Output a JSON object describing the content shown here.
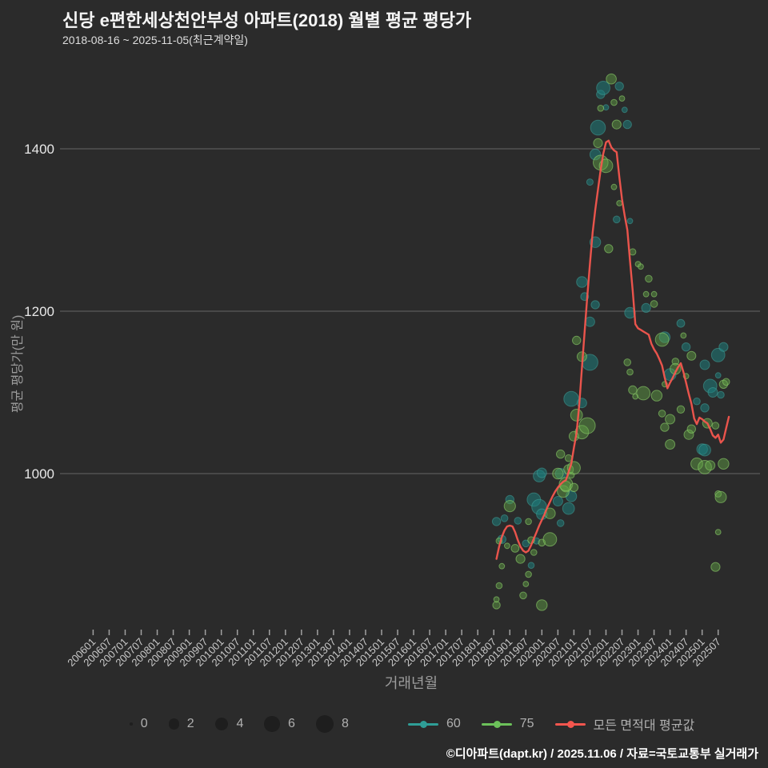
{
  "title": "신당 e편한세상천안부성 아파트(2018) 월별 평균 평당가",
  "subtitle": "2018-08-16 ~ 2025-11-05(최근계약일)",
  "footer": "©디아파트(dapt.kr) / 2025.11.06 / 자료=국토교통부 실거래가",
  "colors": {
    "background": "#2b2b2b",
    "grid": "#8a8a8a",
    "tick_label": "#c9c9c9",
    "y_tick_label": "#e8e8e8",
    "axis_title": "#9c9c9c",
    "legend_text": "#b0b0b0",
    "size_dot": "#1e1e1e",
    "series_60": "#2f9e97",
    "series_75": "#6cc15a",
    "avg_line": "#f4564e",
    "bubble_60_fill": "#1e7d7b",
    "bubble_60_stroke": "#43a79f",
    "bubble_75_fill": "#63a746",
    "bubble_75_stroke": "#8ed06b"
  },
  "legend": {
    "sizes": [
      "0",
      "2",
      "4",
      "6",
      "8"
    ],
    "series": [
      {
        "key": "60",
        "label": "60"
      },
      {
        "key": "75",
        "label": "75"
      },
      {
        "key": "avg",
        "label": "모든 면적대 평균값"
      }
    ]
  },
  "chart_data": {
    "type": "scatter",
    "title": "신당 e편한세상천안부성 아파트(2018) 월별 평균 평당가",
    "xlabel": "거래년월",
    "ylabel": "평균 평당가(만 원)",
    "ylim": [
      800,
      1510
    ],
    "y_ticks": [
      1400,
      1200,
      1000
    ],
    "x_ticks": [
      "200601",
      "200607",
      "200701",
      "200707",
      "200801",
      "200807",
      "200901",
      "200907",
      "201001",
      "201007",
      "201101",
      "201107",
      "201201",
      "201207",
      "201301",
      "201307",
      "201401",
      "201407",
      "201501",
      "201507",
      "201601",
      "201607",
      "201701",
      "201707",
      "201801",
      "201807",
      "201901",
      "201907",
      "202001",
      "202007",
      "202101",
      "202107",
      "202201",
      "202207",
      "202301",
      "202307",
      "202401",
      "202407",
      "202501",
      "202507"
    ],
    "bubble_series": [
      {
        "name": "60",
        "points": [
          [
            "201808",
            941,
            1
          ],
          [
            "201811",
            945,
            0.5
          ],
          [
            "201810",
            919,
            1
          ],
          [
            "201901",
            968,
            1
          ],
          [
            "201904",
            942,
            0.5
          ],
          [
            "201907",
            914,
            0.5
          ],
          [
            "201909",
            887,
            0.3
          ],
          [
            "201911",
            917,
            0.4
          ],
          [
            "201910",
            968,
            4
          ],
          [
            "201912",
            959,
            5.2
          ],
          [
            "201912",
            997,
            2.8
          ],
          [
            "202001",
            950,
            2.2
          ],
          [
            "202001",
            1001,
            1.6
          ],
          [
            "202007",
            966,
            1.6
          ],
          [
            "202008",
            939,
            0.5
          ],
          [
            "202008",
            1000,
            2
          ],
          [
            "202011",
            957,
            2.8
          ],
          [
            "202012",
            972,
            2.2
          ],
          [
            "202012",
            1092,
            5.2
          ],
          [
            "202104",
            1236,
            2.2
          ],
          [
            "202104",
            1087,
            1.6
          ],
          [
            "202105",
            1218,
            0.8
          ],
          [
            "202107",
            1187,
            1.6
          ],
          [
            "202107",
            1137,
            6.3
          ],
          [
            "202107",
            1359,
            0.4
          ],
          [
            "202109",
            1208,
            1
          ],
          [
            "202109",
            1285,
            2.2
          ],
          [
            "202109",
            1393,
            2.2
          ],
          [
            "202110",
            1426,
            5.2
          ],
          [
            "202111",
            1467,
            1
          ],
          [
            "202112",
            1475,
            4
          ],
          [
            "202201",
            1451,
            0.2
          ],
          [
            "202205",
            1313,
            0.5
          ],
          [
            "202206",
            1477,
            1
          ],
          [
            "202208",
            1448,
            0.2
          ],
          [
            "202209",
            1430,
            1
          ],
          [
            "202210",
            1311,
            0.2
          ],
          [
            "202210",
            1198,
            2.2
          ],
          [
            "202304",
            1204,
            1.3
          ],
          [
            "202311",
            1168,
            2.2
          ],
          [
            "202401",
            1122,
            2.8
          ],
          [
            "202405",
            1185,
            0.8
          ],
          [
            "202407",
            1156,
            1
          ],
          [
            "202411",
            1089,
            0.5
          ],
          [
            "202501",
            1030,
            2.2
          ],
          [
            "202502",
            1134,
            1.6
          ],
          [
            "202502",
            1081,
            1
          ],
          [
            "202502",
            1029,
            2.8
          ],
          [
            "202504",
            1108,
            4
          ],
          [
            "202505",
            1100,
            1.6
          ],
          [
            "202507",
            1146,
            4
          ],
          [
            "202507",
            1121,
            0.2
          ],
          [
            "202508",
            1097,
            0.5
          ],
          [
            "202509",
            1156,
            1.3
          ]
        ]
      },
      {
        "name": "75",
        "points": [
          [
            "201808",
            838,
            0.7
          ],
          [
            "201808",
            845,
            0.2
          ],
          [
            "201809",
            917,
            0.3
          ],
          [
            "201809",
            862,
            0.3
          ],
          [
            "201810",
            886,
            0.2
          ],
          [
            "201812",
            911,
            0.2
          ],
          [
            "201901",
            960,
            2.5
          ],
          [
            "201903",
            908,
            0.8
          ],
          [
            "201905",
            895,
            1.3
          ],
          [
            "201906",
            850,
            0.5
          ],
          [
            "201907",
            864,
            0.2
          ],
          [
            "201908",
            941,
            0.3
          ],
          [
            "201908",
            876,
            0.3
          ],
          [
            "201909",
            918,
            0.5
          ],
          [
            "201910",
            903,
            0.3
          ],
          [
            "202001",
            915,
            0.5
          ],
          [
            "202001",
            838,
            2.2
          ],
          [
            "202004",
            951,
            2.2
          ],
          [
            "202004",
            919,
            4
          ],
          [
            "202007",
            1000,
            2.2
          ],
          [
            "202008",
            1024,
            1
          ],
          [
            "202009",
            978,
            2.8
          ],
          [
            "202010",
            984,
            2.2
          ],
          [
            "202010",
            987,
            4
          ],
          [
            "202011",
            1019,
            0.5
          ],
          [
            "202011",
            1005,
            1.6
          ],
          [
            "202012",
            998,
            0.3
          ],
          [
            "202101",
            983,
            1
          ],
          [
            "202101",
            1046,
            1.6
          ],
          [
            "202101",
            1007,
            3.5
          ],
          [
            "202102",
            1164,
            1
          ],
          [
            "202102",
            1072,
            2.8
          ],
          [
            "202104",
            1144,
            1.6
          ],
          [
            "202104",
            1051,
            4
          ],
          [
            "202106",
            1059,
            6.3
          ],
          [
            "202110",
            1407,
            1.3
          ],
          [
            "202111",
            1450,
            0.3
          ],
          [
            "202111",
            1383,
            5.2
          ],
          [
            "202201",
            1379,
            4
          ],
          [
            "202202",
            1277,
            1
          ],
          [
            "202203",
            1486,
            1.8
          ],
          [
            "202204",
            1457,
            0.3
          ],
          [
            "202204",
            1353,
            0.2
          ],
          [
            "202205",
            1430,
            1.3
          ],
          [
            "202206",
            1333,
            0.2
          ],
          [
            "202207",
            1462,
            0.2
          ],
          [
            "202209",
            1137,
            0.5
          ],
          [
            "202210",
            1125,
            0.3
          ],
          [
            "202211",
            1273,
            0.4
          ],
          [
            "202211",
            1103,
            1
          ],
          [
            "202212",
            1095,
            0.2
          ],
          [
            "202301",
            1258,
            0.2
          ],
          [
            "202302",
            1255,
            0.2
          ],
          [
            "202303",
            1099,
            4
          ],
          [
            "202304",
            1221,
            0.2
          ],
          [
            "202305",
            1240,
            0.5
          ],
          [
            "202307",
            1221,
            0.2
          ],
          [
            "202307",
            1209,
            0.5
          ],
          [
            "202308",
            1096,
            2.2
          ],
          [
            "202310",
            1165,
            4
          ],
          [
            "202310",
            1074,
            0.5
          ],
          [
            "202311",
            1110,
            0.2
          ],
          [
            "202311",
            1057,
            1
          ],
          [
            "202401",
            1067,
            1.6
          ],
          [
            "202401",
            1036,
            1.6
          ],
          [
            "202403",
            1138,
            0.5
          ],
          [
            "202403",
            1129,
            2.2
          ],
          [
            "202405",
            1079,
            0.7
          ],
          [
            "202406",
            1170,
            0.2
          ],
          [
            "202407",
            1120,
            0.2
          ],
          [
            "202408",
            1048,
            1.6
          ],
          [
            "202409",
            1145,
            1.2
          ],
          [
            "202409",
            1055,
            1
          ],
          [
            "202411",
            1012,
            2.8
          ],
          [
            "202502",
            1008,
            4
          ],
          [
            "202503",
            1062,
            1.6
          ],
          [
            "202504",
            1010,
            1.6
          ],
          [
            "202506",
            1059,
            0.5
          ],
          [
            "202506",
            885,
            1.3
          ],
          [
            "202507",
            975,
            0.4
          ],
          [
            "202507",
            928,
            0.2
          ],
          [
            "202508",
            971,
            2.4
          ],
          [
            "202509",
            1110,
            1
          ],
          [
            "202509",
            1012,
            2.2
          ],
          [
            "202510",
            1113,
            0.5
          ]
        ]
      }
    ],
    "avg_line": {
      "name": "모든 면적대 평균값",
      "points": [
        [
          "201808",
          895
        ],
        [
          "201809",
          910
        ],
        [
          "201810",
          922
        ],
        [
          "201811",
          930
        ],
        [
          "201812",
          935
        ],
        [
          "201901",
          936
        ],
        [
          "201902",
          935
        ],
        [
          "201903",
          928
        ],
        [
          "201904",
          918
        ],
        [
          "201905",
          910
        ],
        [
          "201906",
          905
        ],
        [
          "201907",
          903
        ],
        [
          "201908",
          905
        ],
        [
          "201909",
          912
        ],
        [
          "201910",
          920
        ],
        [
          "201911",
          928
        ],
        [
          "201912",
          936
        ],
        [
          "202001",
          943
        ],
        [
          "202002",
          950
        ],
        [
          "202003",
          958
        ],
        [
          "202004",
          965
        ],
        [
          "202005",
          972
        ],
        [
          "202006",
          978
        ],
        [
          "202007",
          983
        ],
        [
          "202008",
          987
        ],
        [
          "202009",
          990
        ],
        [
          "202010",
          992
        ],
        [
          "202011",
          1002
        ],
        [
          "202012",
          1012
        ],
        [
          "202101",
          1032
        ],
        [
          "202102",
          1050
        ],
        [
          "202103",
          1085
        ],
        [
          "202104",
          1130
        ],
        [
          "202105",
          1175
        ],
        [
          "202106",
          1218
        ],
        [
          "202107",
          1258
        ],
        [
          "202108",
          1297
        ],
        [
          "202109",
          1325
        ],
        [
          "202110",
          1350
        ],
        [
          "202111",
          1374
        ],
        [
          "202112",
          1394
        ],
        [
          "202201",
          1408
        ],
        [
          "202202",
          1410
        ],
        [
          "202203",
          1402
        ],
        [
          "202204",
          1398
        ],
        [
          "202205",
          1396
        ],
        [
          "202206",
          1365
        ],
        [
          "202207",
          1338
        ],
        [
          "202208",
          1318
        ],
        [
          "202209",
          1300
        ],
        [
          "202210",
          1262
        ],
        [
          "202211",
          1225
        ],
        [
          "202212",
          1184
        ],
        [
          "202301",
          1179
        ],
        [
          "202302",
          1177
        ],
        [
          "202303",
          1175
        ],
        [
          "202304",
          1173
        ],
        [
          "202305",
          1171
        ],
        [
          "202306",
          1160
        ],
        [
          "202307",
          1153
        ],
        [
          "202308",
          1148
        ],
        [
          "202309",
          1141
        ],
        [
          "202310",
          1133
        ],
        [
          "202311",
          1118
        ],
        [
          "202312",
          1105
        ],
        [
          "202401",
          1112
        ],
        [
          "202402",
          1118
        ],
        [
          "202403",
          1125
        ],
        [
          "202404",
          1131
        ],
        [
          "202405",
          1136
        ],
        [
          "202406",
          1125
        ],
        [
          "202407",
          1112
        ],
        [
          "202408",
          1098
        ],
        [
          "202409",
          1086
        ],
        [
          "202410",
          1068
        ],
        [
          "202411",
          1061
        ],
        [
          "202412",
          1069
        ],
        [
          "202501",
          1067
        ],
        [
          "202502",
          1064
        ],
        [
          "202503",
          1062
        ],
        [
          "202504",
          1055
        ],
        [
          "202505",
          1047
        ],
        [
          "202506",
          1044
        ],
        [
          "202507",
          1048
        ],
        [
          "202508",
          1038
        ],
        [
          "202509",
          1042
        ],
        [
          "202510",
          1056
        ],
        [
          "202511",
          1070
        ]
      ]
    }
  }
}
